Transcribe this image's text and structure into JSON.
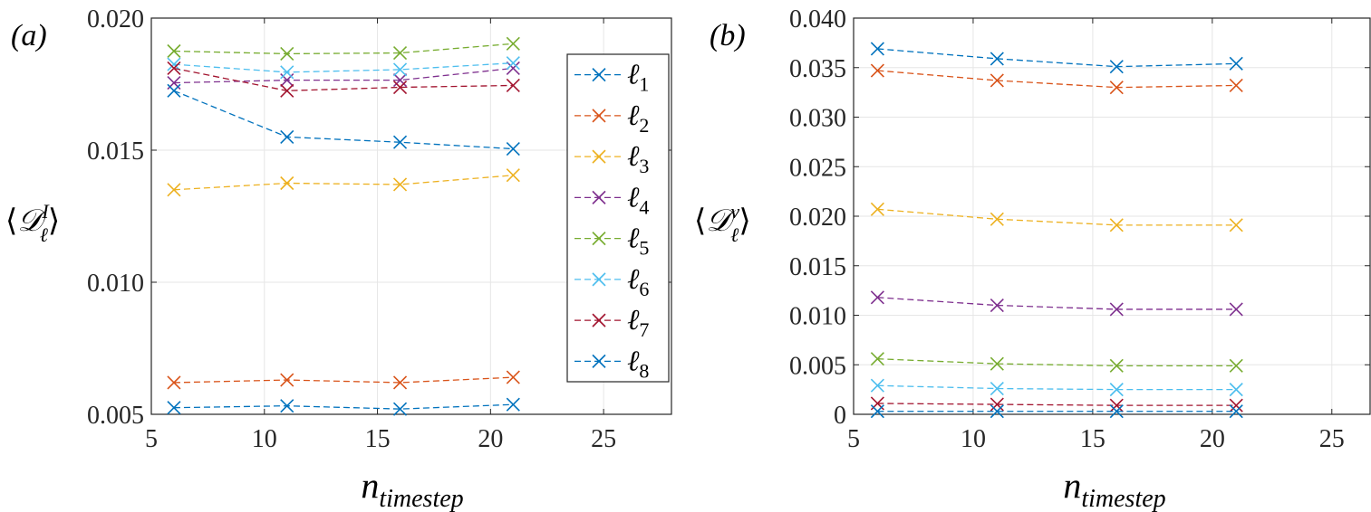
{
  "chart_data": [
    {
      "panel_label": "(a)",
      "type": "line",
      "xlabel": {
        "main": "n",
        "sub": "timestep"
      },
      "ylabel": {
        "left": "⟨",
        "symbol": "𝒟",
        "sup": "I",
        "sub": "ℓ",
        "right": "⟩"
      },
      "xlim": [
        5,
        28
      ],
      "ylim": [
        0.005,
        0.02
      ],
      "xticks": [
        5,
        10,
        15,
        20,
        25
      ],
      "xtick_labels": [
        "5",
        "10",
        "15",
        "20",
        "25"
      ],
      "yticks": [
        0.005,
        0.01,
        0.015,
        0.02
      ],
      "ytick_labels": [
        "0.005",
        "0.010",
        "0.015",
        "0.020"
      ],
      "grid": true,
      "legend_placement": "top-right",
      "x": [
        6,
        11,
        16,
        21
      ],
      "series": [
        {
          "name": "ℓ",
          "sub": "1",
          "color": "#0072BD",
          "values": [
            0.00525,
            0.00532,
            0.0052,
            0.00537
          ]
        },
        {
          "name": "ℓ",
          "sub": "2",
          "color": "#D95319",
          "values": [
            0.0062,
            0.0063,
            0.0062,
            0.0064
          ]
        },
        {
          "name": "ℓ",
          "sub": "3",
          "color": "#EDB120",
          "values": [
            0.0135,
            0.01375,
            0.0137,
            0.01405
          ]
        },
        {
          "name": "ℓ",
          "sub": "4",
          "color": "#7E2F8E",
          "values": [
            0.01755,
            0.01765,
            0.01765,
            0.0181
          ]
        },
        {
          "name": "ℓ",
          "sub": "5",
          "color": "#77AC30",
          "values": [
            0.01875,
            0.01865,
            0.01868,
            0.01903
          ]
        },
        {
          "name": "ℓ",
          "sub": "6",
          "color": "#4DBEEE",
          "values": [
            0.01825,
            0.01795,
            0.01805,
            0.0183
          ]
        },
        {
          "name": "ℓ",
          "sub": "7",
          "color": "#A2142F",
          "values": [
            0.0181,
            0.01725,
            0.01738,
            0.01745
          ]
        },
        {
          "name": "ℓ",
          "sub": "8",
          "color": "#0072BD",
          "values": [
            0.01725,
            0.0155,
            0.0153,
            0.01505
          ]
        }
      ]
    },
    {
      "panel_label": "(b)",
      "type": "line",
      "xlabel": {
        "main": "n",
        "sub": "timestep"
      },
      "ylabel": {
        "left": "⟨",
        "symbol": "𝒟",
        "sup": "v",
        "sub": "ℓ",
        "right": "⟩"
      },
      "xlim": [
        5,
        26.6
      ],
      "ylim": [
        0,
        0.04
      ],
      "xticks": [
        5,
        10,
        15,
        20,
        25
      ],
      "xtick_labels": [
        "5",
        "10",
        "15",
        "20",
        "25"
      ],
      "yticks": [
        0,
        0.005,
        0.01,
        0.015,
        0.02,
        0.025,
        0.03,
        0.035,
        0.04
      ],
      "ytick_labels": [
        "0",
        "0.005",
        "0.010",
        "0.015",
        "0.020",
        "0.025",
        "0.030",
        "0.035",
        "0.040"
      ],
      "grid": true,
      "x": [
        6,
        11,
        16,
        21
      ],
      "series": [
        {
          "color": "#0072BD",
          "values": [
            0.0369,
            0.0359,
            0.0351,
            0.0354
          ]
        },
        {
          "color": "#D95319",
          "values": [
            0.0347,
            0.0337,
            0.033,
            0.0332
          ]
        },
        {
          "color": "#EDB120",
          "values": [
            0.0207,
            0.0197,
            0.0191,
            0.0191
          ]
        },
        {
          "color": "#7E2F8E",
          "values": [
            0.0118,
            0.011,
            0.0106,
            0.0106
          ]
        },
        {
          "color": "#77AC30",
          "values": [
            0.0056,
            0.0051,
            0.0049,
            0.0049
          ]
        },
        {
          "color": "#4DBEEE",
          "values": [
            0.0029,
            0.0026,
            0.0025,
            0.0025
          ]
        },
        {
          "color": "#A2142F",
          "values": [
            0.0011,
            0.001,
            0.0009,
            0.0009
          ]
        },
        {
          "color": "#0072BD",
          "values": [
            0.0003,
            0.0003,
            0.0003,
            0.0003
          ]
        }
      ]
    }
  ]
}
